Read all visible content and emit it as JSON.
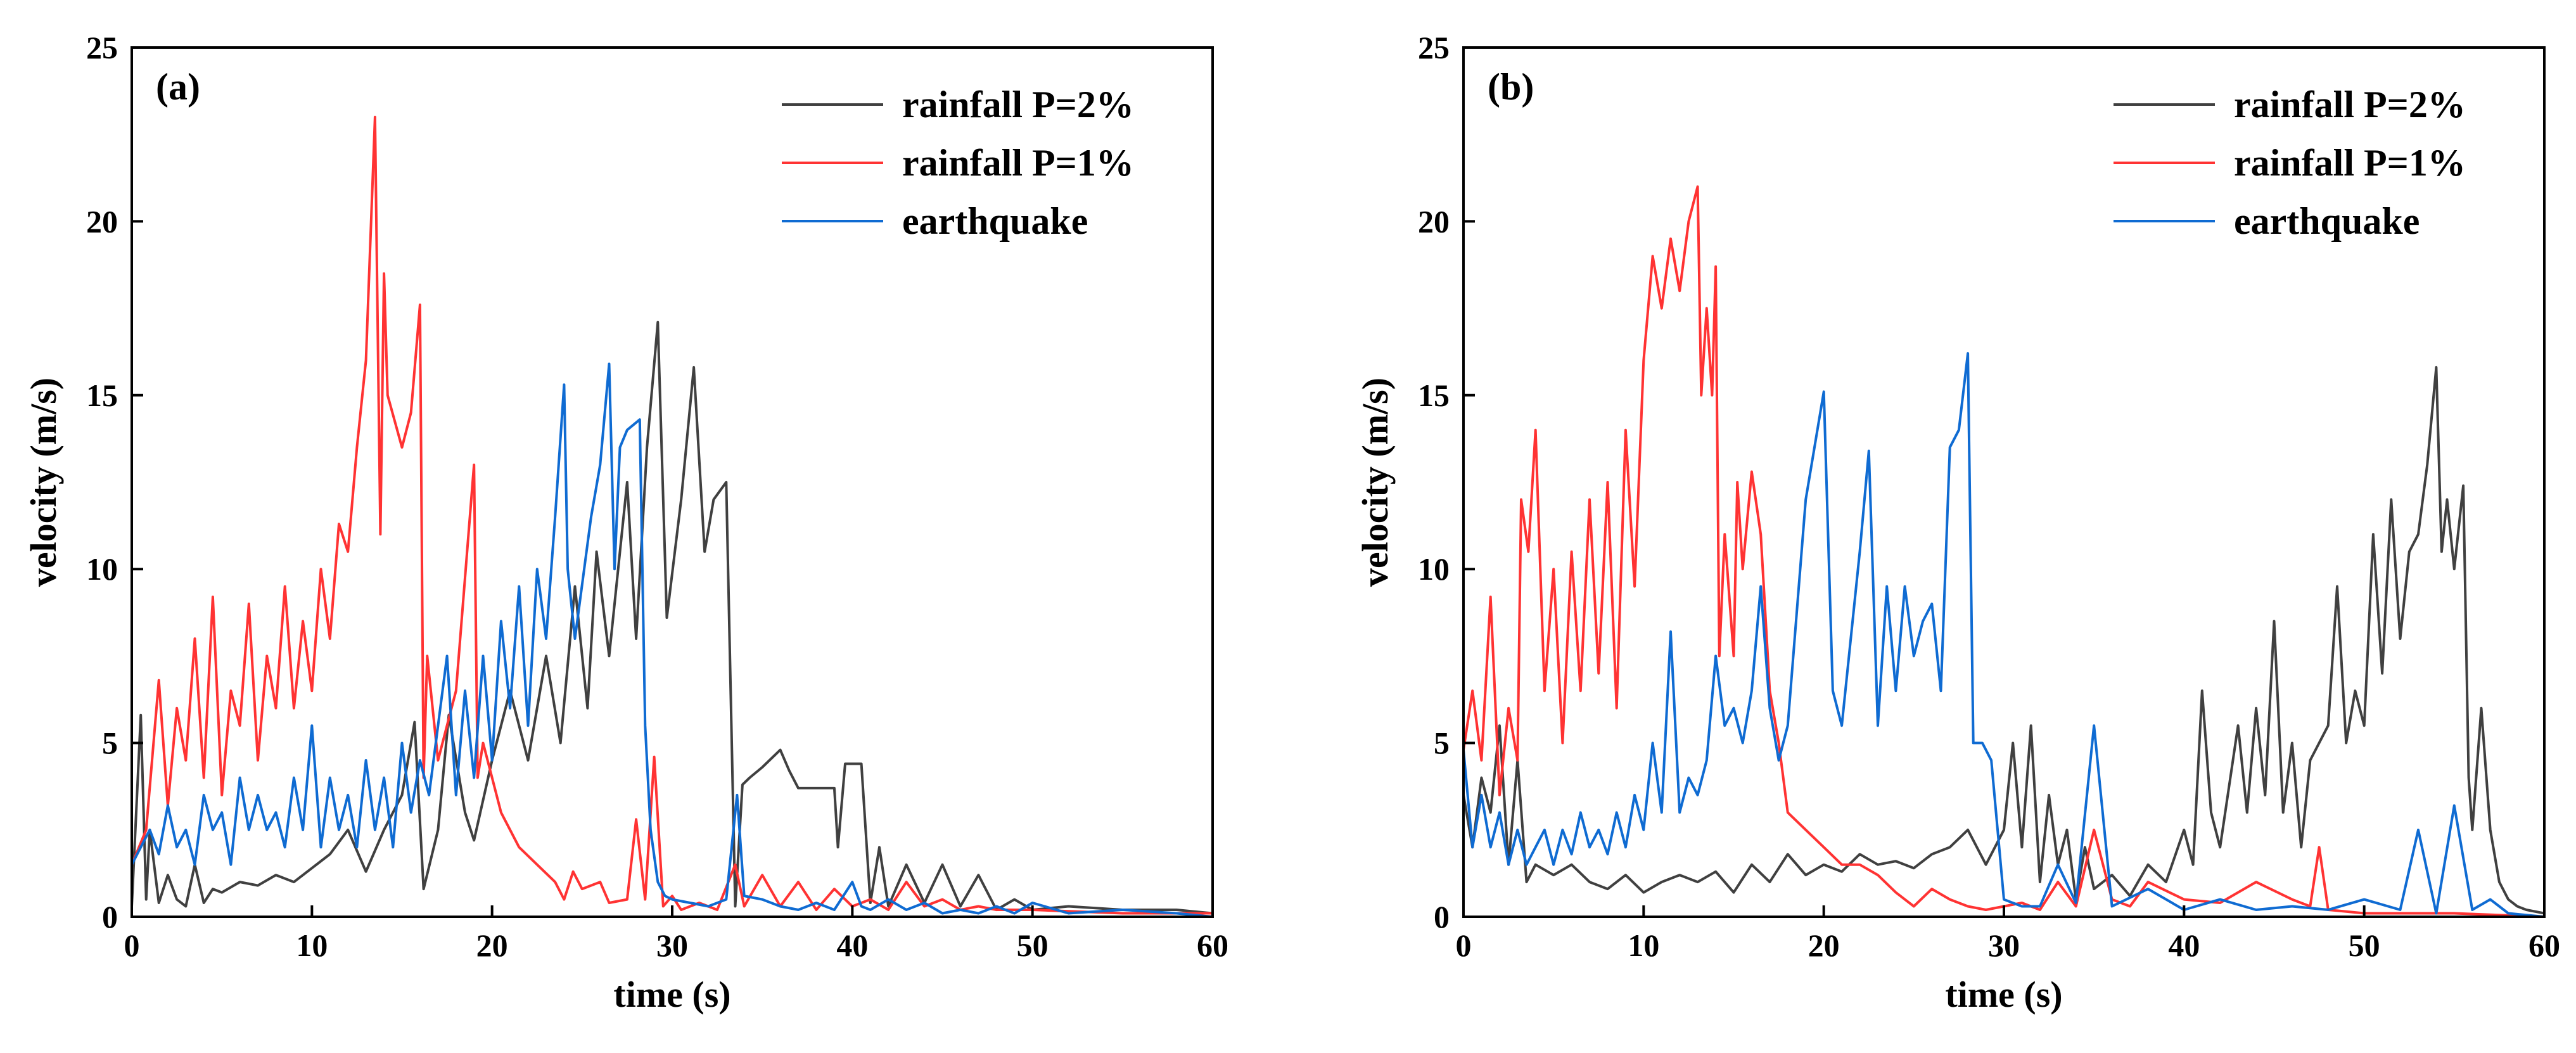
{
  "chart_data": [
    {
      "type": "line",
      "panel_label": "(a)",
      "xlabel": "time (s)",
      "ylabel": "velocity (m/s)",
      "xlim": [
        0,
        60
      ],
      "ylim": [
        0,
        25
      ],
      "xticks": [
        0,
        10,
        20,
        30,
        40,
        50,
        60
      ],
      "yticks": [
        0,
        5,
        10,
        15,
        20,
        25
      ],
      "grid": false,
      "legend_position": "top-right",
      "series": [
        {
          "name": "rainfall P=2%",
          "color": "#404040",
          "x": [
            0,
            0.5,
            0.8,
            1.0,
            1.5,
            2.0,
            2.5,
            3.0,
            3.5,
            4.0,
            4.5,
            5,
            6,
            7,
            8,
            9,
            10,
            11,
            12,
            13,
            14,
            15,
            15.7,
            16.2,
            17,
            17.6,
            18.5,
            19,
            20,
            21,
            22,
            23,
            23.8,
            24.6,
            25.3,
            25.8,
            26.5,
            27.5,
            28.0,
            28.6,
            29.2,
            29.7,
            30.5,
            31.2,
            31.8,
            32.3,
            33.0,
            33.5,
            33.9,
            34.3,
            35,
            36,
            36.5,
            37,
            38,
            39,
            39.2,
            39.6,
            40.5,
            41,
            41.5,
            42,
            43,
            44,
            45,
            46,
            47,
            48,
            49,
            50,
            52,
            55,
            58,
            60
          ],
          "y": [
            0.3,
            5.8,
            0.5,
            2.5,
            0.4,
            1.2,
            0.5,
            0.3,
            1.5,
            0.4,
            0.8,
            0.7,
            1.0,
            0.9,
            1.2,
            1.0,
            1.4,
            1.8,
            2.5,
            1.3,
            2.5,
            3.5,
            5.6,
            0.8,
            2.5,
            5.8,
            3.0,
            2.2,
            4.5,
            6.5,
            4.5,
            7.5,
            5.0,
            9.5,
            6.0,
            10.5,
            7.5,
            12.5,
            8.0,
            13.5,
            17.1,
            8.6,
            12.0,
            15.8,
            10.5,
            12.0,
            12.5,
            0.3,
            3.8,
            4.0,
            4.3,
            4.8,
            4.2,
            3.7,
            3.7,
            3.7,
            2.0,
            4.4,
            4.4,
            0.4,
            2.0,
            0.3,
            1.5,
            0.4,
            1.5,
            0.3,
            1.2,
            0.2,
            0.5,
            0.2,
            0.3,
            0.2,
            0.2,
            0.1
          ]
        },
        {
          "name": "rainfall P=1%",
          "color": "#ff3333",
          "x": [
            0,
            0.8,
            1.5,
            2.0,
            2.5,
            3.0,
            3.5,
            4.0,
            4.5,
            5.0,
            5.5,
            6.0,
            6.5,
            7.0,
            7.5,
            8.0,
            8.5,
            9.0,
            9.5,
            10.0,
            10.5,
            11.0,
            11.5,
            12.0,
            12.5,
            13.0,
            13.5,
            13.8,
            14.0,
            14.2,
            15.0,
            15.5,
            16.0,
            16.2,
            16.4,
            17.0,
            18.0,
            19.0,
            19.2,
            19.5,
            20.5,
            21.5,
            22.5,
            23.5,
            24.0,
            24.5,
            25.0,
            26.0,
            26.5,
            27.5,
            28.0,
            28.5,
            29.0,
            29.5,
            30.0,
            30.5,
            31.5,
            32.5,
            33.5,
            34.0,
            35.0,
            36.0,
            37.0,
            38.0,
            39.0,
            40.0,
            41.0,
            42.0,
            43.0,
            44.0,
            45.0,
            46.0,
            47.0,
            48.0,
            50.0,
            55.0,
            60.0
          ],
          "y": [
            1.5,
            2.5,
            6.8,
            3.2,
            6.0,
            4.5,
            8.0,
            4.0,
            9.2,
            3.5,
            6.5,
            5.5,
            9.0,
            4.5,
            7.5,
            6.0,
            9.5,
            6.0,
            8.5,
            6.5,
            10.0,
            8.0,
            11.3,
            10.5,
            13.5,
            16.0,
            23.0,
            11.0,
            18.5,
            15.0,
            13.5,
            14.5,
            17.6,
            4.0,
            7.5,
            4.5,
            6.5,
            13.0,
            4.0,
            5.0,
            3.0,
            2.0,
            1.5,
            1.0,
            0.5,
            1.3,
            0.8,
            1.0,
            0.4,
            0.5,
            2.8,
            0.5,
            4.6,
            0.3,
            0.6,
            0.2,
            0.4,
            0.2,
            1.5,
            0.3,
            1.2,
            0.3,
            1.0,
            0.2,
            0.8,
            0.3,
            0.5,
            0.2,
            1.0,
            0.3,
            0.5,
            0.2,
            0.3,
            0.2,
            0.2,
            0.1,
            0.1
          ]
        },
        {
          "name": "earthquake",
          "color": "#0f6bd2",
          "x": [
            0,
            0.5,
            1.0,
            1.5,
            2.0,
            2.5,
            3.0,
            3.5,
            4.0,
            4.5,
            5.0,
            5.5,
            6.0,
            6.5,
            7.0,
            7.5,
            8.0,
            8.5,
            9.0,
            9.5,
            10.0,
            10.5,
            11.0,
            11.5,
            12.0,
            12.5,
            13.0,
            13.5,
            14.0,
            14.5,
            15.0,
            15.5,
            16.0,
            16.5,
            17.0,
            17.5,
            18.0,
            18.5,
            19.0,
            19.5,
            20.0,
            20.5,
            21.0,
            21.5,
            22.0,
            22.5,
            23.0,
            23.5,
            24.0,
            24.2,
            24.6,
            25.5,
            26.0,
            26.5,
            26.8,
            27.1,
            27.5,
            28.2,
            28.5,
            28.8,
            29.2,
            29.6,
            30.0,
            31.0,
            32.0,
            33.0,
            33.6,
            34.0,
            35.0,
            36.0,
            37.0,
            38.0,
            39.0,
            40.0,
            40.5,
            41.0,
            42.0,
            43.0,
            44.0,
            45.0,
            46.0,
            47.0,
            48.0,
            49.0,
            50.0,
            52.0,
            55.0,
            58.0,
            60.0
          ],
          "y": [
            1.5,
            2.0,
            2.5,
            1.8,
            3.2,
            2.0,
            2.5,
            1.5,
            3.5,
            2.5,
            3.0,
            1.5,
            4.0,
            2.5,
            3.5,
            2.5,
            3.0,
            2.0,
            4.0,
            2.5,
            5.5,
            2.0,
            4.0,
            2.5,
            3.5,
            2.0,
            4.5,
            2.5,
            4.0,
            2.0,
            5.0,
            3.0,
            4.5,
            3.5,
            5.5,
            7.5,
            3.5,
            6.5,
            4.0,
            7.5,
            4.5,
            8.5,
            6.0,
            9.5,
            5.5,
            10.0,
            8.0,
            11.5,
            15.3,
            10.0,
            8.0,
            11.5,
            13.0,
            15.9,
            10.0,
            13.5,
            14.0,
            14.3,
            5.5,
            2.5,
            1.0,
            0.6,
            0.5,
            0.4,
            0.3,
            0.5,
            3.5,
            0.6,
            0.5,
            0.3,
            0.2,
            0.4,
            0.2,
            1.0,
            0.3,
            0.2,
            0.5,
            0.2,
            0.4,
            0.1,
            0.2,
            0.1,
            0.3,
            0.1,
            0.4,
            0.1,
            0.2,
            0.1,
            0.0
          ]
        }
      ]
    },
    {
      "type": "line",
      "panel_label": "(b)",
      "xlabel": "time (s)",
      "ylabel": "velocity (m/s)",
      "xlim": [
        0,
        60
      ],
      "ylim": [
        0,
        25
      ],
      "xticks": [
        0,
        10,
        20,
        30,
        40,
        50,
        60
      ],
      "yticks": [
        0,
        5,
        10,
        15,
        20,
        25
      ],
      "grid": false,
      "legend_position": "top-right",
      "series": [
        {
          "name": "rainfall P=2%",
          "color": "#404040",
          "x": [
            0,
            0.5,
            1.0,
            1.5,
            2.0,
            2.5,
            3.0,
            3.5,
            4.0,
            5,
            6,
            7,
            8,
            9,
            10,
            11,
            12,
            13,
            14,
            15,
            16,
            17,
            18,
            19,
            20,
            21,
            22,
            23,
            24,
            25,
            26,
            27,
            28,
            29,
            30,
            30.5,
            31.0,
            31.5,
            32.0,
            32.5,
            33.0,
            33.5,
            34.0,
            34.5,
            35.0,
            36.0,
            37.0,
            38.0,
            39.0,
            40.0,
            40.5,
            41.0,
            41.5,
            42.0,
            43.0,
            43.5,
            44.0,
            44.5,
            45.0,
            45.5,
            46.0,
            46.5,
            47.0,
            48.0,
            48.5,
            49.0,
            49.5,
            50.0,
            50.5,
            51.0,
            51.5,
            52.0,
            52.5,
            53.0,
            53.5,
            54.0,
            54.3,
            54.6,
            55.0,
            55.5,
            55.8,
            56.0,
            56.5,
            57.0,
            57.5,
            58.0,
            58.5,
            59.0,
            60.0
          ],
          "y": [
            3.5,
            2.0,
            4.0,
            3.0,
            5.5,
            1.5,
            4.5,
            1.0,
            1.5,
            1.2,
            1.5,
            1.0,
            0.8,
            1.2,
            0.7,
            1.0,
            1.2,
            1.0,
            1.3,
            0.7,
            1.5,
            1.0,
            1.8,
            1.2,
            1.5,
            1.3,
            1.8,
            1.5,
            1.6,
            1.4,
            1.8,
            2.0,
            2.5,
            1.5,
            2.5,
            5.0,
            2.0,
            5.5,
            1.0,
            3.5,
            1.5,
            2.5,
            0.5,
            2.0,
            0.8,
            1.2,
            0.6,
            1.5,
            1.0,
            2.5,
            1.5,
            6.5,
            3.0,
            2.0,
            5.5,
            3.0,
            6.0,
            3.5,
            8.5,
            3.0,
            5.0,
            2.0,
            4.5,
            5.5,
            9.5,
            5.0,
            6.5,
            5.5,
            11.0,
            7.0,
            12.0,
            8.0,
            10.5,
            11.0,
            13.0,
            15.8,
            10.5,
            12.0,
            10.0,
            12.4,
            4.0,
            2.5,
            6.0,
            2.5,
            1.0,
            0.5,
            0.3,
            0.2,
            0.1
          ]
        },
        {
          "name": "rainfall P=1%",
          "color": "#ff3333",
          "x": [
            0,
            0.5,
            1.0,
            1.5,
            2.0,
            2.5,
            3.0,
            3.2,
            3.6,
            4.0,
            4.5,
            5.0,
            5.5,
            6.0,
            6.5,
            7.0,
            7.5,
            8.0,
            8.5,
            9.0,
            9.5,
            10.0,
            10.5,
            11.0,
            11.5,
            12.0,
            12.5,
            13.0,
            13.2,
            13.5,
            13.8,
            14.0,
            14.2,
            14.5,
            15.0,
            15.2,
            15.5,
            16.0,
            16.5,
            17.0,
            17.5,
            18.0,
            19.0,
            20.0,
            21.0,
            22.0,
            23.0,
            24.0,
            25.0,
            26.0,
            27.0,
            28.0,
            29.0,
            30.0,
            31.0,
            32.0,
            33.0,
            34.0,
            35.0,
            36.0,
            37.0,
            38.0,
            40.0,
            42.0,
            44.0,
            46.0,
            47.0,
            47.5,
            48.0,
            50.0,
            55.0,
            60.0
          ],
          "y": [
            4.8,
            6.5,
            4.5,
            9.2,
            3.5,
            6.0,
            4.5,
            12.0,
            10.5,
            14.0,
            6.5,
            10.0,
            5.0,
            10.5,
            6.5,
            12.0,
            7.0,
            12.5,
            6.0,
            14.0,
            9.5,
            16.0,
            19.0,
            17.5,
            19.5,
            18.0,
            20.0,
            21.0,
            15.0,
            17.5,
            15.0,
            18.7,
            7.5,
            11.0,
            7.5,
            12.5,
            10.0,
            12.8,
            11.0,
            6.5,
            5.0,
            3.0,
            2.5,
            2.0,
            1.5,
            1.5,
            1.2,
            0.7,
            0.3,
            0.8,
            0.5,
            0.3,
            0.2,
            0.3,
            0.4,
            0.2,
            1.0,
            0.3,
            2.5,
            0.5,
            0.3,
            1.0,
            0.5,
            0.4,
            1.0,
            0.5,
            0.3,
            2.0,
            0.2,
            0.1,
            0.1,
            0.0
          ]
        },
        {
          "name": "earthquake",
          "color": "#0f6bd2",
          "x": [
            0,
            0.5,
            1.0,
            1.5,
            2.0,
            2.5,
            3.0,
            3.5,
            4.0,
            4.5,
            5.0,
            5.5,
            6.0,
            6.5,
            7.0,
            7.5,
            8.0,
            8.5,
            9.0,
            9.5,
            10.0,
            10.5,
            11.0,
            11.5,
            12.0,
            12.5,
            13.0,
            13.5,
            14.0,
            14.5,
            15.0,
            15.5,
            16.0,
            16.5,
            17.0,
            17.5,
            18.0,
            19.0,
            20.0,
            20.5,
            21.0,
            22.0,
            22.5,
            23.0,
            23.5,
            24.0,
            24.5,
            25.0,
            25.5,
            26.0,
            26.5,
            27.0,
            27.5,
            28.0,
            28.3,
            28.8,
            29.3,
            30.0,
            31.0,
            32.0,
            33.0,
            34.0,
            35.0,
            36.0,
            38.0,
            40.0,
            42.0,
            44.0,
            46.0,
            48.0,
            50.0,
            52.0,
            53.0,
            54.0,
            55.0,
            56.0,
            57.0,
            58.0,
            60.0
          ],
          "y": [
            4.8,
            2.0,
            3.5,
            2.0,
            3.0,
            1.5,
            2.5,
            1.5,
            2.0,
            2.5,
            1.5,
            2.5,
            1.8,
            3.0,
            2.0,
            2.5,
            1.8,
            3.0,
            2.0,
            3.5,
            2.5,
            5.0,
            3.0,
            8.2,
            3.0,
            4.0,
            3.5,
            4.5,
            7.5,
            5.5,
            6.0,
            5.0,
            6.5,
            9.5,
            6.0,
            4.5,
            5.5,
            12.0,
            15.1,
            6.5,
            5.5,
            10.5,
            13.4,
            5.5,
            9.5,
            6.5,
            9.5,
            7.5,
            8.5,
            9.0,
            6.5,
            13.5,
            14.0,
            16.2,
            5.0,
            5.0,
            4.5,
            0.5,
            0.3,
            0.3,
            1.5,
            0.4,
            5.5,
            0.3,
            0.8,
            0.2,
            0.5,
            0.2,
            0.3,
            0.2,
            0.5,
            0.2,
            2.5,
            0.1,
            3.2,
            0.2,
            0.5,
            0.1,
            0.0
          ]
        }
      ]
    }
  ]
}
